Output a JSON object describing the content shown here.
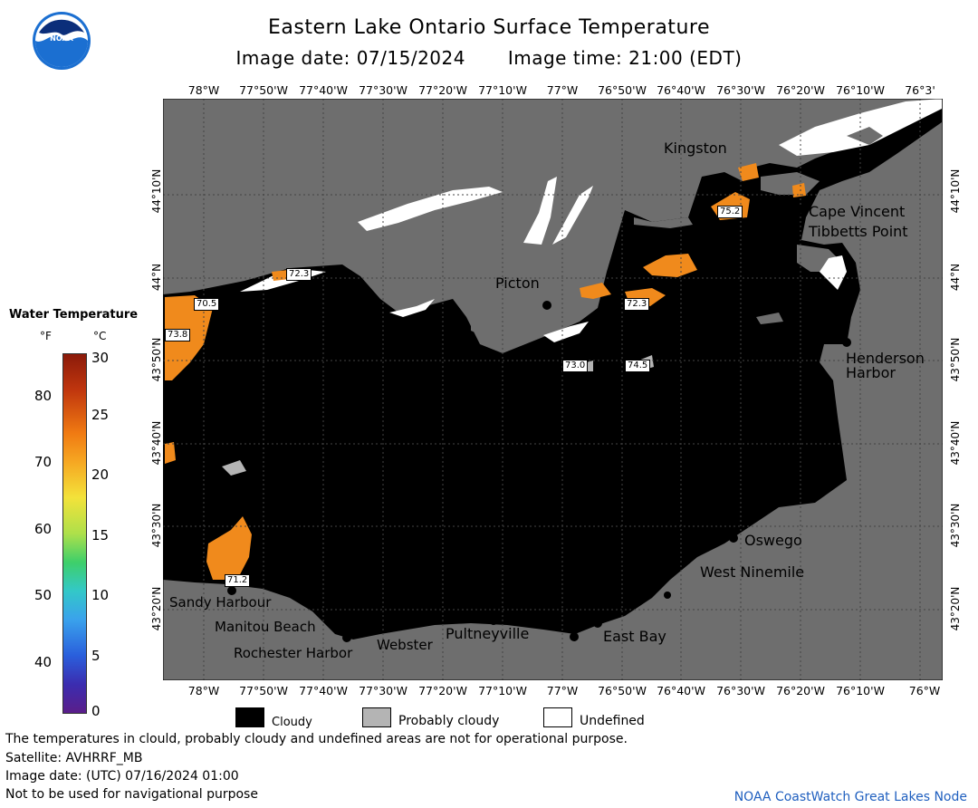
{
  "header": {
    "title": "Eastern Lake Ontario Surface Temperature",
    "image_date": "Image date: 07/15/2024",
    "image_time": "Image time: 21:00 (EDT)"
  },
  "logo": {
    "text": "NOAA"
  },
  "map": {
    "lon_labels": [
      "78°W",
      "77°50'W",
      "77°40'W",
      "77°30'W",
      "77°20'W",
      "77°10'W",
      "77°W",
      "76°50'W",
      "76°40'W",
      "76°30'W",
      "76°20'W",
      "76°10'W",
      "76°W"
    ],
    "lon_top_last": "76°3'",
    "lat_labels": [
      "44°10'N",
      "44°N",
      "43°50'N",
      "43°40'N",
      "43°30'N",
      "43°20'N"
    ],
    "lat_left_partial": "43°40'N",
    "places": {
      "kingston": "Kingston",
      "cape_vincent": "Cape Vincent",
      "tibbetts_point": "Tibbetts Point",
      "picton": "Picton",
      "henderson_harbor_1": "Henderson",
      "henderson_harbor_2": "Harbor",
      "oswego": "Oswego",
      "west_ninemile": "West Ninemile",
      "sandy_harbour": "Sandy Harbour",
      "manitou_beach": "Manitou Beach",
      "rochester_harbor": "Rochester Harbor",
      "webster": "Webster",
      "pultneyville": "Pultneyville",
      "east_bay": "East Bay"
    },
    "temp_labels": [
      "72.3",
      "70.5",
      "73.8",
      "75.2",
      "72.3",
      "73.0",
      "74.5",
      "71.2"
    ],
    "colors": {
      "land": "#6e6e6e",
      "cloud": "#000000",
      "warm": "#f08a1c",
      "undefined": "#ffffff"
    }
  },
  "legend": {
    "title": "Water Temperature",
    "unit_f": "°F",
    "unit_c": "°C",
    "f_ticks": [
      "80",
      "70",
      "60",
      "50",
      "40"
    ],
    "c_ticks": [
      "30",
      "25",
      "20",
      "15",
      "10",
      "5",
      "0"
    ],
    "keys": {
      "cloudy": "Cloudy",
      "probably_cloudy": "Probably cloudy",
      "undefined": "Undefined"
    }
  },
  "footer": {
    "line1": "The temperatures in clould, probably cloudy and undefined areas are not for operational purpose.",
    "line2": "Satellite: AVHRRF_MB",
    "line3": "Image date: (UTC) 07/16/2024  01:00",
    "line4": "Not to be used for navigational purpose",
    "credit": "NOAA CoastWatch Great Lakes Node"
  }
}
